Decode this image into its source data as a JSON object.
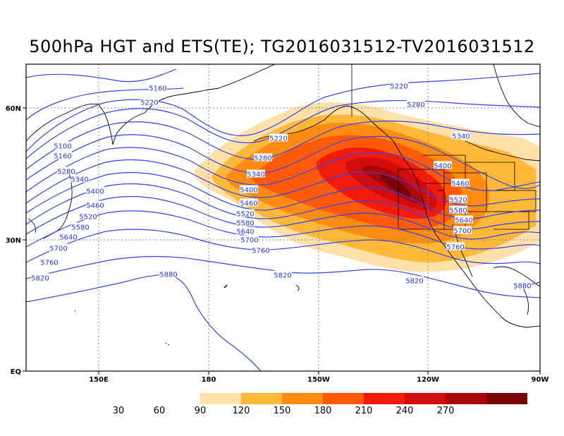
{
  "title": "500hPa HGT and ETS(TE); TG2016031512-TV2016031512",
  "map": {
    "lon_ticks": [
      "150E",
      "180",
      "150W",
      "120W",
      "90W"
    ],
    "lat_ticks": [
      "60N",
      "30N",
      "EQ"
    ],
    "contour_color": "#3344ee",
    "grid": "dotted"
  },
  "colorbar": {
    "ticks": [
      "30",
      "60",
      "90",
      "120",
      "150",
      "180",
      "210",
      "240",
      "270"
    ],
    "colors": [
      "#ffe0a8",
      "#ffb838",
      "#ff8c10",
      "#ff5a0a",
      "#f21a0a",
      "#d00c0c",
      "#aa0808",
      "#7a0404"
    ]
  },
  "contour_labels": [
    {
      "text": "5160"
    },
    {
      "text": "5220"
    },
    {
      "text": "5100"
    },
    {
      "text": "5160"
    },
    {
      "text": "5280"
    },
    {
      "text": "5340"
    },
    {
      "text": "5400"
    },
    {
      "text": "5460"
    },
    {
      "text": "5520"
    },
    {
      "text": "5580"
    },
    {
      "text": "5640"
    },
    {
      "text": "5700"
    },
    {
      "text": "5760"
    },
    {
      "text": "5820"
    },
    {
      "text": "5880"
    },
    {
      "text": "5220"
    },
    {
      "text": "5280"
    },
    {
      "text": "5340"
    },
    {
      "text": "5400"
    },
    {
      "text": "5460"
    },
    {
      "text": "5520"
    },
    {
      "text": "5580"
    },
    {
      "text": "5640"
    },
    {
      "text": "5700"
    },
    {
      "text": "5760"
    },
    {
      "text": "5820"
    },
    {
      "text": "5220"
    },
    {
      "text": "5280"
    },
    {
      "text": "5340"
    },
    {
      "text": "5400"
    },
    {
      "text": "5460"
    },
    {
      "text": "5520"
    },
    {
      "text": "5580"
    },
    {
      "text": "5640"
    },
    {
      "text": "5700"
    },
    {
      "text": "5760"
    },
    {
      "text": "5820"
    },
    {
      "text": "5880"
    }
  ]
}
